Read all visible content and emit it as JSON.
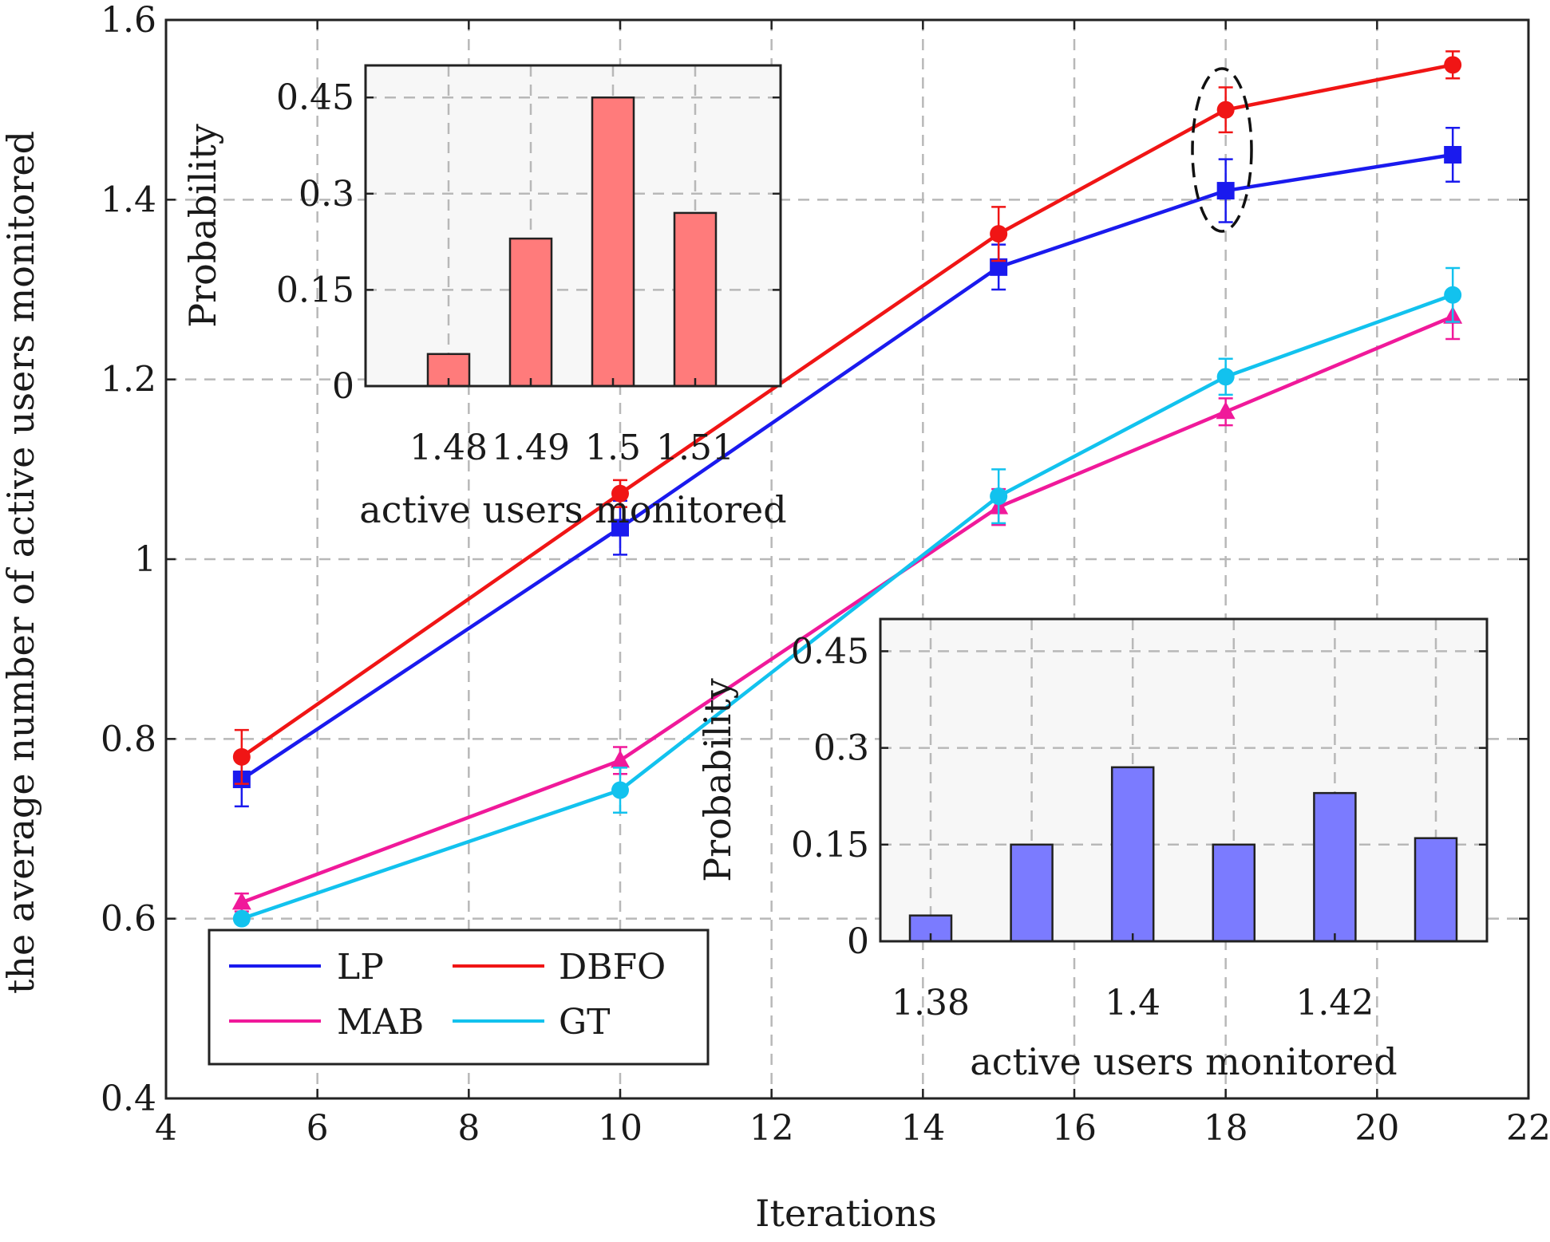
{
  "chart_data": [
    {
      "type": "line",
      "title": "",
      "xlabel": "Iterations",
      "ylabel": "the average number of active users monitored",
      "xlim": [
        4,
        22
      ],
      "ylim": [
        0.4,
        1.6
      ],
      "xticks": [
        "4",
        "6",
        "8",
        "10",
        "12",
        "14",
        "16",
        "18",
        "20",
        "22"
      ],
      "yticks": [
        "0.4",
        "0.6",
        "0.8",
        "1",
        "1.2",
        "1.4",
        "1.6"
      ],
      "grid": true,
      "legend_position": "lower-left",
      "x": [
        5,
        10,
        15,
        18,
        21
      ],
      "series": [
        {
          "name": "LP",
          "color": "#1a1aee",
          "marker": "square",
          "values": [
            0.755,
            1.035,
            1.325,
            1.41,
            1.45
          ],
          "errors": [
            0.03,
            0.03,
            0.025,
            0.035,
            0.03
          ]
        },
        {
          "name": "DBFO",
          "color": "#f01515",
          "marker": "circle",
          "values": [
            0.78,
            1.073,
            1.362,
            1.5,
            1.55
          ],
          "errors": [
            0.03,
            0.015,
            0.03,
            0.025,
            0.015
          ]
        },
        {
          "name": "MAB",
          "color": "#f0199a",
          "marker": "triangle",
          "values": [
            0.618,
            0.776,
            1.058,
            1.164,
            1.27
          ],
          "errors": [
            0.01,
            0.015,
            0.02,
            0.015,
            0.025
          ]
        },
        {
          "name": "GT",
          "color": "#12c2ee",
          "marker": "circle",
          "values": [
            0.6,
            0.743,
            1.07,
            1.203,
            1.294
          ],
          "errors": [
            0.005,
            0.025,
            0.03,
            0.02,
            0.03
          ]
        }
      ],
      "annotation": "dashed ellipse around x = 18"
    },
    {
      "type": "bar",
      "xlabel": "active users monitored",
      "ylabel": "Probability",
      "categories": [
        "1.48",
        "1.49",
        "1.5",
        "1.51"
      ],
      "values": [
        0.05,
        0.23,
        0.45,
        0.27
      ],
      "yticks": [
        "0",
        "0.15",
        "0.3",
        "0.45"
      ],
      "ylim": [
        0,
        0.5
      ],
      "color": "#ff7b7b",
      "placement": "top-left inset"
    },
    {
      "type": "bar",
      "xlabel": "active users monitored",
      "ylabel": "Probability",
      "x": [
        1.38,
        1.39,
        1.4,
        1.41,
        1.42,
        1.43
      ],
      "values": [
        0.04,
        0.15,
        0.27,
        0.15,
        0.23,
        0.16
      ],
      "xticks": [
        "1.38",
        "1.4",
        "1.42"
      ],
      "yticks": [
        "0",
        "0.15",
        "0.3",
        "0.45"
      ],
      "ylim": [
        0,
        0.5
      ],
      "color": "#7b7bff",
      "placement": "bottom-right inset"
    }
  ]
}
